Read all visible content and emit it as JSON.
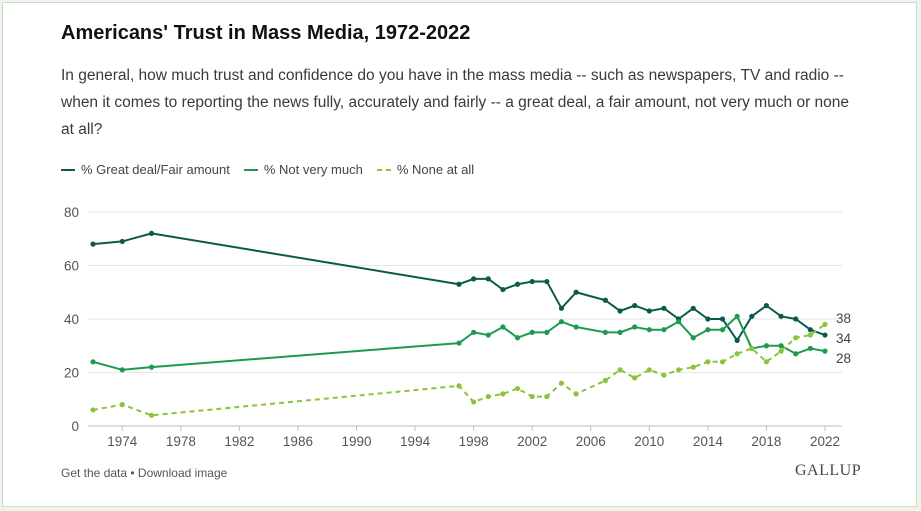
{
  "title": "Americans' Trust in Mass Media, 1972-2022",
  "subtitle": "In general, how much trust and confidence do you have in the mass media -- such as newspapers, TV and radio -- when it comes to reporting the news fully, accurately and fairly -- a great deal, a fair amount, not very much or none at all?",
  "legend": [
    {
      "label": "% Great deal/Fair amount",
      "color": "#0b5a4b",
      "dashed": false
    },
    {
      "label": "% Not very much",
      "color": "#1e9a4f",
      "dashed": false
    },
    {
      "label": "% None at all",
      "color": "#8ac43a",
      "dashed": true
    }
  ],
  "footer": {
    "get_data": "Get the data",
    "separator": " • ",
    "download": "Download image",
    "brand": "GALLUP"
  },
  "chart_data": {
    "type": "line",
    "xlim": [
      1972,
      2022
    ],
    "ylim": [
      0,
      80
    ],
    "y_ticks": [
      0,
      20,
      40,
      60,
      80
    ],
    "x_ticks": [
      1974,
      1978,
      1982,
      1986,
      1990,
      1994,
      1998,
      2002,
      2006,
      2010,
      2014,
      2018,
      2022
    ],
    "grid": "horizontal",
    "legend_position": "top-left",
    "series": [
      {
        "name": "% Great deal/Fair amount",
        "color": "#0b5a4b",
        "dashed": false,
        "end_label": "34",
        "points": [
          [
            1972,
            68
          ],
          [
            1974,
            69
          ],
          [
            1976,
            72
          ],
          [
            1997,
            53
          ],
          [
            1998,
            55
          ],
          [
            1999,
            55
          ],
          [
            2000,
            51
          ],
          [
            2001,
            53
          ],
          [
            2002,
            54
          ],
          [
            2003,
            54
          ],
          [
            2004,
            44
          ],
          [
            2005,
            50
          ],
          [
            2007,
            47
          ],
          [
            2008,
            43
          ],
          [
            2009,
            45
          ],
          [
            2010,
            43
          ],
          [
            2011,
            44
          ],
          [
            2012,
            40
          ],
          [
            2013,
            44
          ],
          [
            2014,
            40
          ],
          [
            2015,
            40
          ],
          [
            2016,
            32
          ],
          [
            2017,
            41
          ],
          [
            2018,
            45
          ],
          [
            2019,
            41
          ],
          [
            2020,
            40
          ],
          [
            2021,
            36
          ],
          [
            2022,
            34
          ]
        ]
      },
      {
        "name": "% Not very much",
        "color": "#1e9a4f",
        "dashed": false,
        "end_label": "28",
        "points": [
          [
            1972,
            24
          ],
          [
            1974,
            21
          ],
          [
            1976,
            22
          ],
          [
            1997,
            31
          ],
          [
            1998,
            35
          ],
          [
            1999,
            34
          ],
          [
            2000,
            37
          ],
          [
            2001,
            33
          ],
          [
            2002,
            35
          ],
          [
            2003,
            35
          ],
          [
            2004,
            39
          ],
          [
            2005,
            37
          ],
          [
            2007,
            35
          ],
          [
            2008,
            35
          ],
          [
            2009,
            37
          ],
          [
            2010,
            36
          ],
          [
            2011,
            36
          ],
          [
            2012,
            39
          ],
          [
            2013,
            33
          ],
          [
            2014,
            36
          ],
          [
            2015,
            36
          ],
          [
            2016,
            41
          ],
          [
            2017,
            29
          ],
          [
            2018,
            30
          ],
          [
            2019,
            30
          ],
          [
            2020,
            27
          ],
          [
            2021,
            29
          ],
          [
            2022,
            28
          ]
        ]
      },
      {
        "name": "% None at all",
        "color": "#8ac43a",
        "dashed": true,
        "end_label": "38",
        "points": [
          [
            1972,
            6
          ],
          [
            1974,
            8
          ],
          [
            1976,
            4
          ],
          [
            1997,
            15
          ],
          [
            1998,
            9
          ],
          [
            1999,
            11
          ],
          [
            2000,
            12
          ],
          [
            2001,
            14
          ],
          [
            2002,
            11
          ],
          [
            2003,
            11
          ],
          [
            2004,
            16
          ],
          [
            2005,
            12
          ],
          [
            2007,
            17
          ],
          [
            2008,
            21
          ],
          [
            2009,
            18
          ],
          [
            2010,
            21
          ],
          [
            2011,
            19
          ],
          [
            2012,
            21
          ],
          [
            2013,
            22
          ],
          [
            2014,
            24
          ],
          [
            2015,
            24
          ],
          [
            2016,
            27
          ],
          [
            2017,
            29
          ],
          [
            2018,
            24
          ],
          [
            2019,
            28
          ],
          [
            2020,
            33
          ],
          [
            2021,
            34
          ],
          [
            2022,
            38
          ]
        ]
      }
    ]
  }
}
